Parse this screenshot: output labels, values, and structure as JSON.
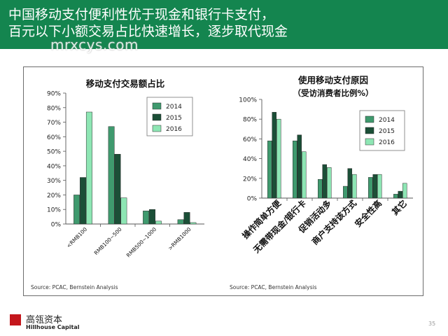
{
  "header": {
    "line1": "中国移动支付便利性优于现金和银行卡支付，",
    "line2": "百元以下小额交易占比快速增长，逐步取代现金"
  },
  "watermark": "mrxcys.com",
  "footer": {
    "company_cn": "高瓴资本",
    "company_en": "Hillhouse Capital",
    "page_number": "35"
  },
  "colors": {
    "header_bg": "#14854f",
    "series_2014": "#3f9a6e",
    "series_2015": "#1b4f37",
    "series_2016": "#8ee6b4"
  },
  "chart_data": [
    {
      "type": "bar",
      "title": "移动支付交易额占比",
      "subtitle": "",
      "source": "Source: PCAC, Bernstein Analysis",
      "categories": [
        "<RMB100",
        "RMB100~500",
        "RMB500~1000",
        ">RMB1000"
      ],
      "series": [
        {
          "name": "2014",
          "values": [
            20,
            67,
            9,
            3
          ]
        },
        {
          "name": "2015",
          "values": [
            32,
            48,
            10,
            8
          ]
        },
        {
          "name": "2016",
          "values": [
            77,
            18,
            2,
            1
          ]
        }
      ],
      "ylim": [
        0,
        90
      ],
      "yticks": [
        "0%",
        "10%",
        "20%",
        "30%",
        "40%",
        "50%",
        "60%",
        "70%",
        "80%",
        "90%"
      ],
      "legend": "top-right",
      "grid": false
    },
    {
      "type": "bar",
      "title": "使用移动支付原因",
      "subtitle": "（受访消费者比例%）",
      "source": "Source: PCAC, Bernstein Analysis",
      "categories": [
        "操作简单方便",
        "无需带现金/银行卡",
        "促销活动多",
        "商户支持该方式",
        "安全性高",
        "其它"
      ],
      "series": [
        {
          "name": "2014",
          "values": [
            58,
            58,
            19,
            12,
            21,
            4
          ]
        },
        {
          "name": "2015",
          "values": [
            87,
            64,
            34,
            30,
            24,
            7
          ]
        },
        {
          "name": "2016",
          "values": [
            80,
            47,
            31,
            24,
            24,
            15
          ]
        }
      ],
      "ylim": [
        0,
        100
      ],
      "yticks": [
        "0%",
        "20%",
        "40%",
        "60%",
        "80%",
        "100%"
      ],
      "legend": "top-right",
      "grid": false
    }
  ]
}
